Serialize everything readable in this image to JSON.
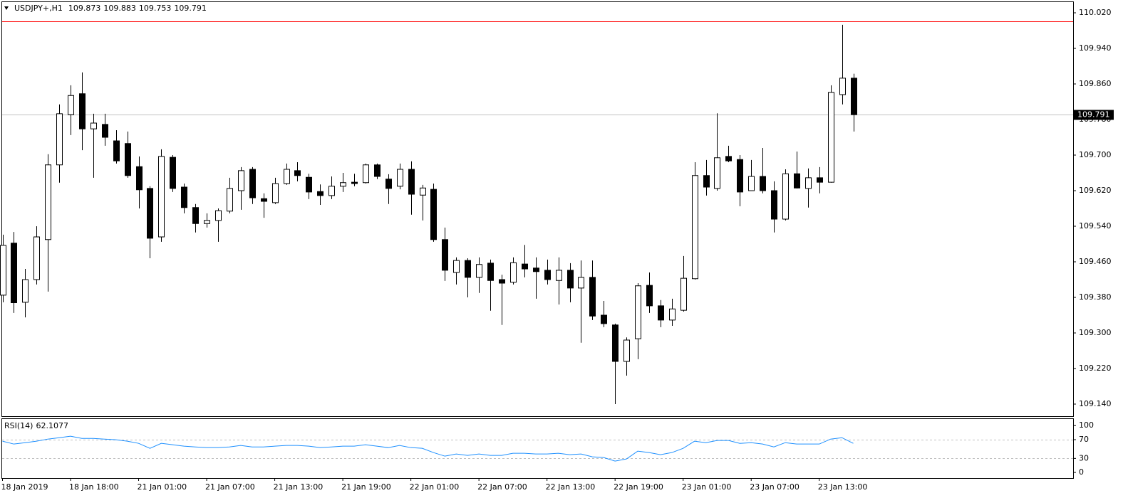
{
  "chart_data": [
    {
      "type": "candlestick",
      "title": "USDJPY+,H1",
      "categories": [
        "18 Jan 2019",
        null,
        null,
        null,
        null,
        null,
        "18 Jan 18:00",
        null,
        null,
        null,
        null,
        null,
        "21 Jan 01:00",
        null,
        null,
        null,
        null,
        null,
        "21 Jan 07:00",
        null,
        null,
        null,
        null,
        null,
        "21 Jan 13:00",
        null,
        null,
        null,
        null,
        null,
        "21 Jan 19:00",
        null,
        null,
        null,
        null,
        null,
        "22 Jan 01:00",
        null,
        null,
        null,
        null,
        null,
        "22 Jan 07:00",
        null,
        null,
        null,
        null,
        null,
        "22 Jan 13:00",
        null,
        null,
        null,
        null,
        null,
        "22 Jan 19:00",
        null,
        null,
        null,
        null,
        null,
        "23 Jan 01:00",
        null,
        null,
        null,
        null,
        null,
        "23 Jan 07:00",
        null,
        null,
        null,
        null,
        null,
        "23 Jan 13:00",
        null,
        null,
        null
      ],
      "open": [
        109.385,
        109.502,
        109.369,
        109.42,
        109.51,
        109.678,
        109.791,
        109.838,
        109.759,
        109.769,
        109.732,
        109.726,
        109.674,
        109.625,
        109.516,
        109.695,
        109.628,
        109.582,
        109.546,
        109.553,
        109.574,
        109.62,
        109.668,
        109.602,
        109.593,
        109.636,
        109.665,
        109.65,
        109.618,
        109.609,
        109.63,
        109.639,
        109.638,
        109.678,
        109.646,
        109.63,
        109.668,
        109.61,
        109.623,
        109.51,
        109.436,
        109.463,
        109.425,
        109.457,
        109.42,
        109.414,
        109.455,
        109.446,
        109.441,
        109.418,
        109.441,
        109.401,
        109.425,
        109.34,
        109.318,
        109.236,
        109.287,
        109.407,
        109.361,
        109.329,
        109.351,
        109.422,
        109.654,
        109.625,
        109.697,
        109.69,
        109.62,
        109.652,
        109.62,
        109.556,
        109.658,
        109.625,
        109.649,
        109.639,
        109.836,
        109.873
      ],
      "high": [
        109.521,
        109.527,
        109.444,
        109.54,
        109.702,
        109.814,
        109.857,
        109.886,
        109.793,
        109.793,
        109.756,
        109.753,
        109.697,
        109.63,
        109.713,
        109.7,
        109.636,
        109.59,
        109.569,
        109.58,
        109.649,
        109.673,
        109.673,
        109.614,
        109.649,
        109.681,
        109.684,
        109.658,
        109.634,
        109.652,
        109.66,
        109.658,
        109.681,
        109.681,
        109.657,
        109.681,
        109.686,
        109.633,
        109.636,
        109.537,
        109.47,
        109.468,
        109.47,
        109.465,
        109.431,
        109.47,
        109.498,
        109.47,
        109.465,
        109.47,
        109.457,
        109.463,
        109.463,
        109.372,
        109.321,
        109.29,
        109.412,
        109.436,
        109.374,
        109.377,
        109.473,
        109.684,
        109.689,
        109.794,
        109.721,
        109.7,
        109.689,
        109.716,
        109.641,
        109.668,
        109.708,
        109.67,
        109.673,
        109.857,
        109.993,
        109.883
      ],
      "low": [
        109.369,
        109.345,
        109.335,
        109.409,
        109.393,
        109.638,
        109.745,
        109.711,
        109.649,
        109.721,
        109.681,
        109.649,
        109.58,
        109.468,
        109.505,
        109.617,
        109.569,
        109.526,
        109.537,
        109.505,
        109.569,
        109.577,
        109.59,
        109.559,
        109.59,
        109.633,
        109.641,
        109.601,
        109.588,
        109.601,
        109.617,
        109.63,
        109.636,
        109.646,
        109.59,
        109.623,
        109.566,
        109.553,
        109.505,
        109.417,
        109.409,
        109.38,
        109.39,
        109.35,
        109.318,
        109.409,
        109.425,
        109.377,
        109.409,
        109.364,
        109.369,
        109.278,
        109.329,
        109.313,
        109.14,
        109.204,
        109.241,
        109.345,
        109.313,
        109.316,
        109.348,
        109.42,
        109.609,
        109.62,
        109.684,
        109.585,
        109.62,
        109.614,
        109.526,
        109.553,
        109.625,
        109.582,
        109.614,
        109.638,
        109.814,
        109.753
      ],
      "close": [
        109.497,
        109.368,
        109.42,
        109.516,
        109.678,
        109.793,
        109.834,
        109.759,
        109.772,
        109.74,
        109.687,
        109.654,
        109.622,
        109.513,
        109.697,
        109.625,
        109.582,
        109.546,
        109.553,
        109.575,
        109.625,
        109.665,
        109.604,
        109.596,
        109.636,
        109.668,
        109.654,
        109.617,
        109.609,
        109.63,
        109.638,
        109.636,
        109.678,
        109.652,
        109.625,
        109.668,
        109.612,
        109.626,
        109.51,
        109.441,
        109.463,
        109.425,
        109.454,
        109.418,
        109.412,
        109.458,
        109.444,
        109.438,
        109.42,
        109.441,
        109.401,
        109.425,
        109.338,
        109.321,
        109.236,
        109.284,
        109.406,
        109.361,
        109.329,
        109.354,
        109.423,
        109.654,
        109.628,
        109.694,
        109.687,
        109.617,
        109.652,
        109.62,
        109.556,
        109.658,
        109.626,
        109.649,
        109.639,
        109.841,
        109.873,
        109.791
      ],
      "up_color": "#ffffff",
      "down_color": "#000000",
      "hlines": [
        110.0
      ],
      "hline_color": "#ff0000",
      "ylim": [
        109.1128,
        110.0456
      ],
      "yticks": [
        {
          "value": 110.02,
          "label": "110.020"
        },
        {
          "value": 109.94,
          "label": "109.940"
        },
        {
          "value": 109.86,
          "label": "109.860"
        },
        {
          "value": 109.78,
          "label": "109.780"
        },
        {
          "value": 109.7,
          "label": "109.700"
        },
        {
          "value": 109.62,
          "label": "109.620"
        },
        {
          "value": 109.54,
          "label": "109.540"
        },
        {
          "value": 109.46,
          "label": "109.460"
        },
        {
          "value": 109.38,
          "label": "109.380"
        },
        {
          "value": 109.3,
          "label": "109.300"
        },
        {
          "value": 109.22,
          "label": "109.220"
        },
        {
          "value": 109.14,
          "label": "109.140"
        }
      ]
    },
    {
      "type": "line",
      "title": "RSI(14)",
      "color": "#1e90ff",
      "values": [
        66.7,
        60.6,
        63.6,
        66.7,
        71.2,
        74.2,
        77.3,
        72.7,
        72.7,
        71.2,
        69.7,
        66.7,
        62.1,
        51.5,
        62.1,
        59.1,
        56.1,
        54.5,
        53.0,
        53.0,
        54.5,
        57.6,
        54.5,
        54.5,
        56.1,
        57.6,
        57.6,
        56.1,
        53.0,
        54.5,
        56.1,
        56.1,
        59.1,
        56.1,
        53.0,
        57.6,
        53.0,
        51.5,
        42.4,
        34.8,
        39.4,
        36.4,
        39.4,
        36.4,
        36.4,
        40.9,
        40.9,
        39.4,
        39.4,
        40.9,
        37.9,
        39.4,
        33.3,
        31.8,
        24.2,
        28.8,
        45.5,
        42.4,
        37.9,
        42.4,
        51.5,
        66.7,
        63.6,
        68.2,
        68.2,
        62.1,
        63.6,
        60.6,
        54.5,
        63.6,
        60.6,
        60.6,
        60.6,
        71.2,
        74.2,
        62.1077
      ],
      "levels": [
        70,
        30
      ],
      "ylim": [
        -12,
        114
      ],
      "yticks": [
        100,
        70,
        30,
        0
      ]
    }
  ]
}
